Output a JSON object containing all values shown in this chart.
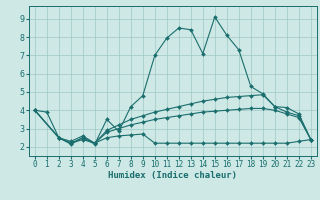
{
  "xlabel": "Humidex (Indice chaleur)",
  "background_color": "#cde8e5",
  "grid_color": "#a0c8c4",
  "line_color": "#1a6e6e",
  "xlim": [
    -0.5,
    23.5
  ],
  "ylim": [
    1.5,
    9.7
  ],
  "xticks": [
    0,
    1,
    2,
    3,
    4,
    5,
    6,
    7,
    8,
    9,
    10,
    11,
    12,
    13,
    14,
    15,
    16,
    17,
    18,
    19,
    20,
    21,
    22,
    23
  ],
  "yticks": [
    2,
    3,
    4,
    5,
    6,
    7,
    8,
    9
  ],
  "series": [
    {
      "x": [
        0,
        1,
        2,
        3,
        4,
        5,
        6,
        7,
        8,
        9,
        10,
        11,
        12,
        13,
        14,
        15,
        16,
        17,
        18,
        19,
        20,
        21,
        22,
        23
      ],
      "y": [
        4.0,
        3.9,
        2.5,
        2.15,
        2.5,
        2.15,
        3.5,
        2.85,
        4.2,
        4.8,
        7.0,
        7.95,
        8.5,
        8.4,
        7.1,
        9.1,
        8.1,
        7.3,
        5.3,
        4.9,
        4.2,
        3.9,
        3.7,
        2.4
      ]
    },
    {
      "x": [
        0,
        2,
        3,
        4,
        5,
        6,
        7,
        8,
        9,
        10,
        11,
        12,
        13,
        14,
        15,
        16,
        17,
        18,
        19,
        20,
        21,
        22,
        23
      ],
      "y": [
        4.0,
        2.5,
        2.3,
        2.6,
        2.2,
        2.9,
        3.2,
        3.5,
        3.7,
        3.9,
        4.05,
        4.2,
        4.35,
        4.5,
        4.6,
        4.7,
        4.75,
        4.8,
        4.85,
        4.2,
        4.15,
        3.8,
        2.4
      ]
    },
    {
      "x": [
        0,
        2,
        3,
        4,
        5,
        6,
        7,
        8,
        9,
        10,
        11,
        12,
        13,
        14,
        15,
        16,
        17,
        18,
        19,
        20,
        21,
        22,
        23
      ],
      "y": [
        4.0,
        2.5,
        2.2,
        2.5,
        2.2,
        2.8,
        3.0,
        3.2,
        3.35,
        3.5,
        3.6,
        3.7,
        3.8,
        3.9,
        3.95,
        4.0,
        4.05,
        4.1,
        4.1,
        4.0,
        3.8,
        3.6,
        2.4
      ]
    },
    {
      "x": [
        0,
        2,
        3,
        4,
        5,
        6,
        7,
        8,
        9,
        10,
        11,
        12,
        13,
        14,
        15,
        16,
        17,
        18,
        19,
        20,
        21,
        22,
        23
      ],
      "y": [
        4.0,
        2.5,
        2.2,
        2.4,
        2.2,
        2.5,
        2.6,
        2.65,
        2.7,
        2.2,
        2.2,
        2.2,
        2.2,
        2.2,
        2.2,
        2.2,
        2.2,
        2.2,
        2.2,
        2.2,
        2.2,
        2.3,
        2.4
      ]
    }
  ]
}
